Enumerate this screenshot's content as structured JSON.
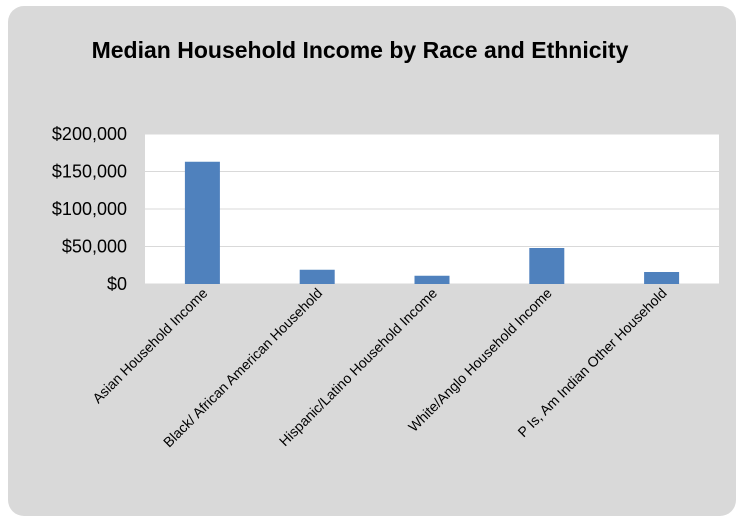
{
  "colors": {
    "card_background": "#d9d9d9",
    "plot_background": "#ffffff",
    "bar": "#4f81bd",
    "gridline": "#d9d9d9"
  },
  "chart_data": {
    "type": "bar",
    "title": "Median Household Income by Race and Ethnicity",
    "xlabel": "",
    "ylabel": "",
    "categories": [
      "Asian Household Income",
      "Black/ African American Household",
      "Hispanic/Latino Household Income",
      "White/Anglo Household Income",
      "P Is, Am Indian Other Household"
    ],
    "values": [
      163000,
      19000,
      11000,
      48000,
      16000
    ],
    "ylim": [
      0,
      200000
    ],
    "yticks": [
      0,
      50000,
      100000,
      150000,
      200000
    ],
    "ytick_labels": [
      "$0",
      "$50,000",
      "$100,000",
      "$150,000",
      "$200,000"
    ],
    "grid": true,
    "legend": "none"
  }
}
